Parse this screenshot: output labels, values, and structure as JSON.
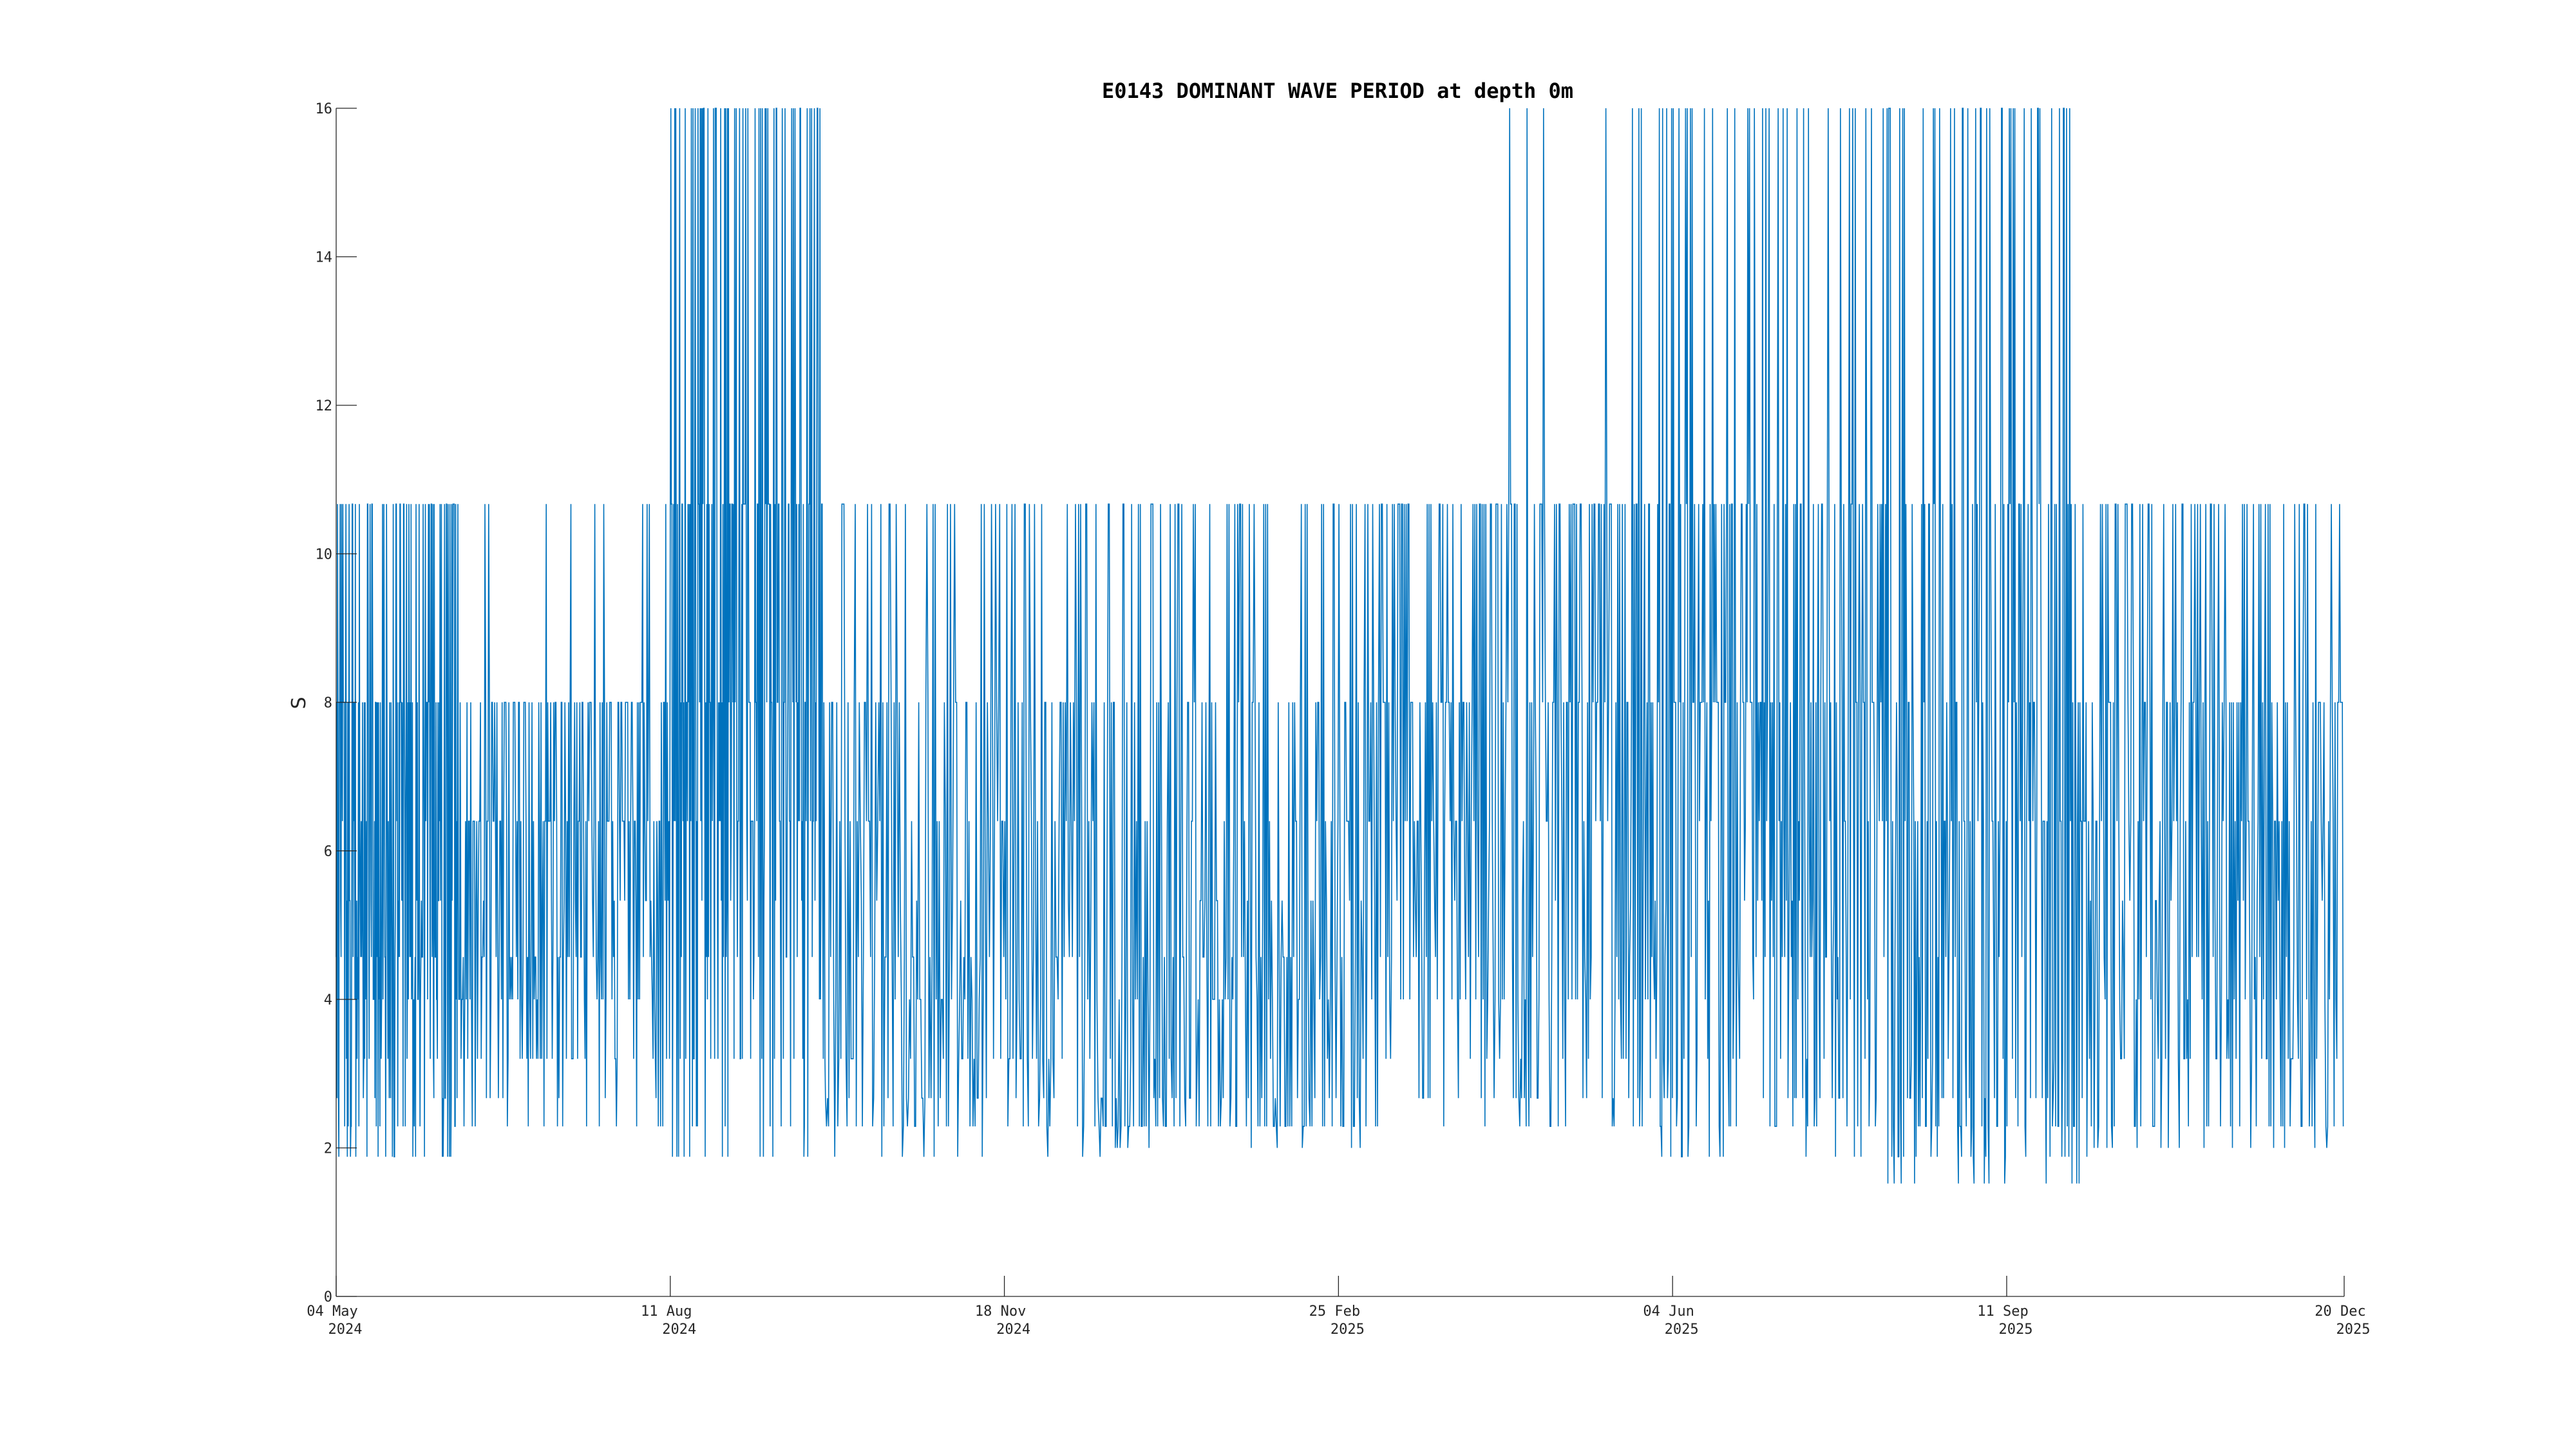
{
  "chart_data": {
    "type": "line",
    "title": "E0143 DOMINANT WAVE PERIOD at depth 0m",
    "xlabel": "",
    "ylabel": "S",
    "series_color": "#0072BD",
    "ylim": [
      0,
      16
    ],
    "yticks": [
      0,
      2,
      4,
      6,
      8,
      10,
      12,
      14,
      16
    ],
    "xlim": [
      "2024-05-04",
      "2025-12-20"
    ],
    "xticks": [
      {
        "date": "2024-05-04",
        "line1": "04 May",
        "line2": "2024"
      },
      {
        "date": "2024-08-11",
        "line1": "11 Aug",
        "line2": "2024"
      },
      {
        "date": "2024-11-18",
        "line1": "18 Nov",
        "line2": "2024"
      },
      {
        "date": "2025-02-25",
        "line1": "25 Feb",
        "line2": "2025"
      },
      {
        "date": "2025-06-04",
        "line1": "04 Jun",
        "line2": "2025"
      },
      {
        "date": "2025-09-11",
        "line1": "11 Sep",
        "line2": "2025"
      },
      {
        "date": "2025-12-20",
        "line1": "20 Dec",
        "line2": "2025"
      }
    ],
    "period_levels": [
      1.52,
      1.88,
      2.29,
      2.67,
      3.2,
      4.0,
      4.57,
      5.33,
      6.4,
      8.0,
      10.67,
      16.0
    ],
    "series": [
      {
        "segments": [
          {
            "start": "2024-05-04",
            "end": "2024-06-10",
            "period_values": [
              10.67,
              8.0,
              6.4,
              4.57,
              5.33,
              8.0,
              10.67,
              6.4,
              4.0,
              3.2,
              2.67,
              4.57,
              10.67,
              8.0,
              5.33,
              4.0,
              2.29,
              1.88,
              8.0,
              10.67
            ]
          },
          {
            "start": "2024-06-10",
            "end": "2024-08-11",
            "period_values": [
              8.0,
              6.4,
              4.57,
              3.2,
              2.67,
              4.0,
              6.4,
              8.0,
              10.67,
              5.33,
              4.0,
              2.29,
              8.0,
              6.4,
              5.33,
              4.57,
              3.2,
              8.0,
              6.4,
              8.0
            ]
          },
          {
            "start": "2024-08-11",
            "end": "2024-09-26",
            "period_values": [
              10.67,
              8.0,
              16.0,
              6.4,
              4.57,
              2.29,
              10.67,
              16.0,
              8.0,
              5.33,
              10.67,
              6.4,
              3.2,
              1.88,
              10.67,
              16.0,
              8.0,
              10.67,
              6.4,
              4.0
            ]
          },
          {
            "start": "2024-09-26",
            "end": "2024-12-20",
            "period_values": [
              10.67,
              8.0,
              4.0,
              2.67,
              6.4,
              4.57,
              2.29,
              1.88,
              8.0,
              10.67,
              3.2,
              2.67,
              5.33,
              4.0,
              2.29,
              8.0,
              10.67,
              4.57,
              3.2,
              6.4
            ]
          },
          {
            "start": "2024-12-20",
            "end": "2025-03-10",
            "period_values": [
              4.57,
              2.67,
              2.0,
              10.67,
              8.0,
              4.0,
              2.29,
              6.4,
              10.67,
              3.2,
              2.29,
              8.0,
              5.33,
              4.57,
              2.29,
              10.67,
              6.4,
              8.0,
              4.0,
              2.67
            ]
          },
          {
            "start": "2025-03-10",
            "end": "2025-05-25",
            "period_values": [
              10.67,
              8.0,
              4.0,
              2.67,
              6.4,
              10.67,
              5.33,
              3.2,
              8.0,
              10.67,
              4.57,
              2.67,
              8.0,
              6.4,
              10.67,
              16.0,
              4.0,
              2.29,
              8.0,
              10.67
            ]
          },
          {
            "start": "2025-05-25",
            "end": "2025-08-01",
            "period_values": [
              8.0,
              6.4,
              10.67,
              16.0,
              4.57,
              3.2,
              8.0,
              6.4,
              10.67,
              16.0,
              8.0,
              4.0,
              2.67,
              5.33,
              8.0,
              4.57,
              2.29,
              1.88,
              10.67,
              16.0
            ]
          },
          {
            "start": "2025-08-01",
            "end": "2025-10-05",
            "period_values": [
              8.0,
              1.52,
              10.67,
              16.0,
              6.4,
              4.57,
              2.67,
              8.0,
              6.4,
              10.67,
              16.0,
              2.29,
              1.88,
              8.0,
              6.4,
              3.2,
              10.67,
              16.0,
              6.4,
              2.29
            ]
          },
          {
            "start": "2025-10-05",
            "end": "2025-12-20",
            "period_values": [
              10.67,
              8.0,
              4.0,
              2.0,
              6.4,
              3.2,
              10.67,
              8.0,
              5.33,
              2.29,
              6.4,
              4.57,
              10.67,
              8.0,
              2.29,
              3.2,
              6.4,
              8.0,
              4.0,
              10.67
            ]
          }
        ]
      }
    ]
  }
}
